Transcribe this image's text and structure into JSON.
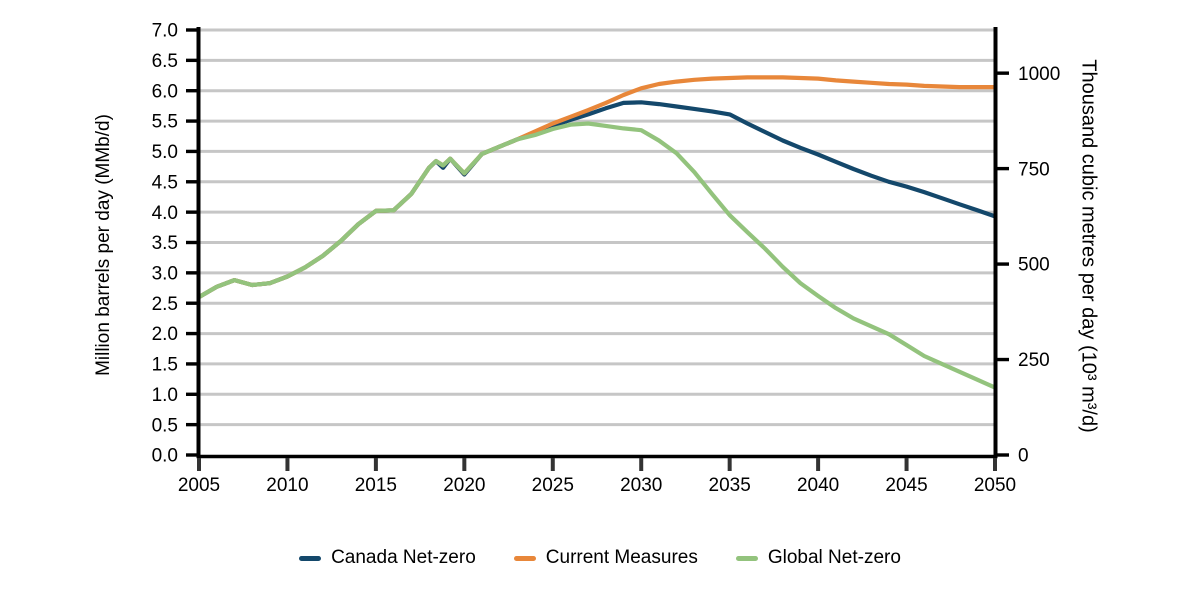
{
  "accent_colors": {
    "canada_net_zero": "#14486b",
    "current_measures": "#e8873a",
    "global_net_zero": "#93c37d",
    "gridline": "#c6c6c6",
    "axis": "#000000"
  },
  "chart_data": {
    "type": "line",
    "title": "",
    "x_axis": {
      "range": [
        2005,
        2050
      ],
      "ticks": [
        "2005",
        "2010",
        "2015",
        "2020",
        "2025",
        "2030",
        "2035",
        "2040",
        "2045",
        "2050"
      ],
      "tick_values": [
        2005,
        2010,
        2015,
        2020,
        2025,
        2030,
        2035,
        2040,
        2045,
        2050
      ]
    },
    "y_axis_left": {
      "title": "Million barrels per day (MMb/d)",
      "range": [
        0,
        7
      ],
      "ticks": [
        "7.0",
        "6.5",
        "6.0",
        "5.5",
        "5.0",
        "4.5",
        "4.0",
        "3.5",
        "3.0",
        "2.5",
        "2.0",
        "1.5",
        "1.0",
        "0.5",
        "0.0"
      ],
      "tick_values": [
        7.0,
        6.5,
        6.0,
        5.5,
        5.0,
        4.5,
        4.0,
        3.5,
        3.0,
        2.5,
        2.0,
        1.5,
        1.0,
        0.5,
        0.0
      ],
      "grid": true
    },
    "y_axis_right": {
      "title": "Thousand cubic metres per day (10³ m³/d)",
      "range": [
        0,
        1113
      ],
      "ticks": [
        "1000",
        "750",
        "500",
        "250",
        "0"
      ],
      "tick_values": [
        1000,
        750,
        500,
        250,
        0
      ],
      "grid": false
    },
    "legend_position": "bottom-center",
    "series": [
      {
        "id": "canada-net-zero",
        "name": "Canada Net-zero",
        "color": "#14486b",
        "points": [
          [
            2005,
            2.6
          ],
          [
            2006,
            2.77
          ],
          [
            2007,
            2.88
          ],
          [
            2008,
            2.8
          ],
          [
            2009,
            2.83
          ],
          [
            2010,
            2.94
          ],
          [
            2011,
            3.09
          ],
          [
            2012,
            3.28
          ],
          [
            2013,
            3.52
          ],
          [
            2014,
            3.8
          ],
          [
            2015,
            4.02
          ],
          [
            2016,
            4.03
          ],
          [
            2017,
            4.3
          ],
          [
            2018,
            4.73
          ],
          [
            2018.4,
            4.84
          ],
          [
            2018.8,
            4.73
          ],
          [
            2019.2,
            4.88
          ],
          [
            2020,
            4.62
          ],
          [
            2021,
            4.96
          ],
          [
            2022,
            5.08
          ],
          [
            2023,
            5.2
          ],
          [
            2024,
            5.31
          ],
          [
            2025,
            5.42
          ],
          [
            2026,
            5.52
          ],
          [
            2027,
            5.61
          ],
          [
            2028,
            5.71
          ],
          [
            2029,
            5.8
          ],
          [
            2030,
            5.81
          ],
          [
            2031,
            5.78
          ],
          [
            2032,
            5.74
          ],
          [
            2033,
            5.7
          ],
          [
            2034,
            5.66
          ],
          [
            2035,
            5.61
          ],
          [
            2036,
            5.46
          ],
          [
            2037,
            5.32
          ],
          [
            2038,
            5.18
          ],
          [
            2039,
            5.06
          ],
          [
            2040,
            4.95
          ],
          [
            2041,
            4.83
          ],
          [
            2042,
            4.71
          ],
          [
            2043,
            4.6
          ],
          [
            2044,
            4.5
          ],
          [
            2045,
            4.42
          ],
          [
            2046,
            4.33
          ],
          [
            2047,
            4.23
          ],
          [
            2048,
            4.13
          ],
          [
            2049,
            4.03
          ],
          [
            2050,
            3.93
          ]
        ]
      },
      {
        "id": "current-measures",
        "name": "Current Measures",
        "color": "#e8873a",
        "points": [
          [
            2005,
            2.6
          ],
          [
            2006,
            2.77
          ],
          [
            2007,
            2.88
          ],
          [
            2008,
            2.8
          ],
          [
            2009,
            2.83
          ],
          [
            2010,
            2.94
          ],
          [
            2011,
            3.09
          ],
          [
            2012,
            3.28
          ],
          [
            2013,
            3.52
          ],
          [
            2014,
            3.8
          ],
          [
            2015,
            4.02
          ],
          [
            2016,
            4.03
          ],
          [
            2017,
            4.3
          ],
          [
            2018,
            4.73
          ],
          [
            2018.4,
            4.84
          ],
          [
            2018.8,
            4.77
          ],
          [
            2019.2,
            4.88
          ],
          [
            2020,
            4.64
          ],
          [
            2021,
            4.96
          ],
          [
            2022,
            5.08
          ],
          [
            2023,
            5.2
          ],
          [
            2024,
            5.33
          ],
          [
            2025,
            5.46
          ],
          [
            2026,
            5.57
          ],
          [
            2027,
            5.68
          ],
          [
            2028,
            5.8
          ],
          [
            2029,
            5.93
          ],
          [
            2030,
            6.04
          ],
          [
            2031,
            6.11
          ],
          [
            2032,
            6.15
          ],
          [
            2033,
            6.18
          ],
          [
            2034,
            6.2
          ],
          [
            2035,
            6.21
          ],
          [
            2036,
            6.22
          ],
          [
            2037,
            6.22
          ],
          [
            2038,
            6.22
          ],
          [
            2039,
            6.21
          ],
          [
            2040,
            6.2
          ],
          [
            2041,
            6.17
          ],
          [
            2042,
            6.15
          ],
          [
            2043,
            6.13
          ],
          [
            2044,
            6.11
          ],
          [
            2045,
            6.1
          ],
          [
            2046,
            6.08
          ],
          [
            2047,
            6.07
          ],
          [
            2048,
            6.06
          ],
          [
            2049,
            6.06
          ],
          [
            2050,
            6.06
          ]
        ]
      },
      {
        "id": "global-net-zero",
        "name": "Global Net-zero",
        "color": "#93c37d",
        "points": [
          [
            2005,
            2.6
          ],
          [
            2006,
            2.77
          ],
          [
            2007,
            2.88
          ],
          [
            2008,
            2.8
          ],
          [
            2009,
            2.83
          ],
          [
            2010,
            2.94
          ],
          [
            2011,
            3.09
          ],
          [
            2012,
            3.28
          ],
          [
            2013,
            3.52
          ],
          [
            2014,
            3.8
          ],
          [
            2015,
            4.02
          ],
          [
            2016,
            4.03
          ],
          [
            2017,
            4.3
          ],
          [
            2018,
            4.73
          ],
          [
            2018.4,
            4.84
          ],
          [
            2018.8,
            4.77
          ],
          [
            2019.2,
            4.88
          ],
          [
            2020,
            4.64
          ],
          [
            2021,
            4.96
          ],
          [
            2022,
            5.08
          ],
          [
            2023,
            5.2
          ],
          [
            2024,
            5.27
          ],
          [
            2025,
            5.37
          ],
          [
            2026,
            5.44
          ],
          [
            2027,
            5.46
          ],
          [
            2028,
            5.42
          ],
          [
            2029,
            5.38
          ],
          [
            2030,
            5.35
          ],
          [
            2031,
            5.18
          ],
          [
            2032,
            4.97
          ],
          [
            2033,
            4.66
          ],
          [
            2034,
            4.3
          ],
          [
            2035,
            3.95
          ],
          [
            2036,
            3.67
          ],
          [
            2037,
            3.4
          ],
          [
            2038,
            3.1
          ],
          [
            2039,
            2.83
          ],
          [
            2040,
            2.62
          ],
          [
            2041,
            2.42
          ],
          [
            2042,
            2.25
          ],
          [
            2043,
            2.12
          ],
          [
            2044,
            1.99
          ],
          [
            2045,
            1.81
          ],
          [
            2046,
            1.63
          ],
          [
            2047,
            1.5
          ],
          [
            2048,
            1.37
          ],
          [
            2049,
            1.24
          ],
          [
            2050,
            1.11
          ]
        ]
      }
    ]
  }
}
